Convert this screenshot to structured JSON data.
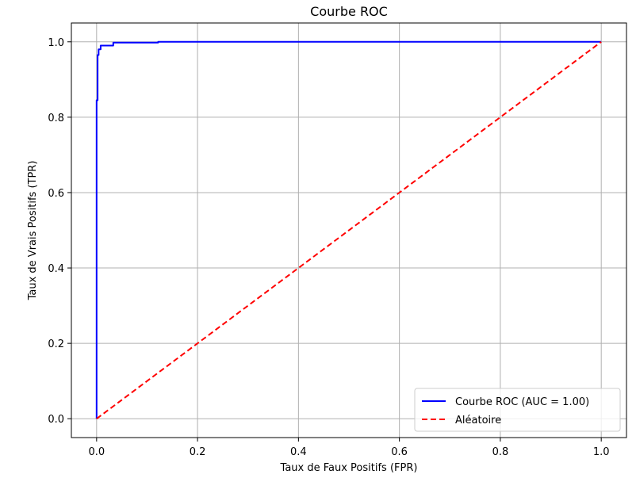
{
  "chart_data": {
    "type": "line",
    "title": "Courbe ROC",
    "xlabel": "Taux de Faux Positifs (FPR)",
    "ylabel": "Taux de Vrais Positifs (TPR)",
    "xlim": [
      -0.05,
      1.05
    ],
    "ylim": [
      -0.05,
      1.05
    ],
    "xticks": [
      0.0,
      0.2,
      0.4,
      0.6,
      0.8,
      1.0
    ],
    "yticks": [
      0.0,
      0.2,
      0.4,
      0.6,
      0.8,
      1.0
    ],
    "xtick_labels": [
      "0.0",
      "0.2",
      "0.4",
      "0.6",
      "0.8",
      "1.0"
    ],
    "ytick_labels": [
      "0.0",
      "0.2",
      "0.4",
      "0.6",
      "0.8",
      "1.0"
    ],
    "grid": true,
    "legend_position": "lower-right",
    "series": [
      {
        "name": "Courbe ROC (AUC = 1.00)",
        "color": "#0000ff",
        "style": "solid",
        "x": [
          0.0,
          0.0,
          0.0,
          0.002,
          0.002,
          0.004,
          0.004,
          0.008,
          0.008,
          0.033,
          0.033,
          0.122,
          0.122,
          1.0
        ],
        "y": [
          0.0,
          0.84,
          0.845,
          0.845,
          0.965,
          0.965,
          0.98,
          0.98,
          0.99,
          0.99,
          0.998,
          0.998,
          1.0,
          1.0
        ]
      },
      {
        "name": "Aléatoire",
        "color": "#ff0000",
        "style": "dashed",
        "x": [
          0.0,
          1.0
        ],
        "y": [
          0.0,
          1.0
        ]
      }
    ]
  }
}
